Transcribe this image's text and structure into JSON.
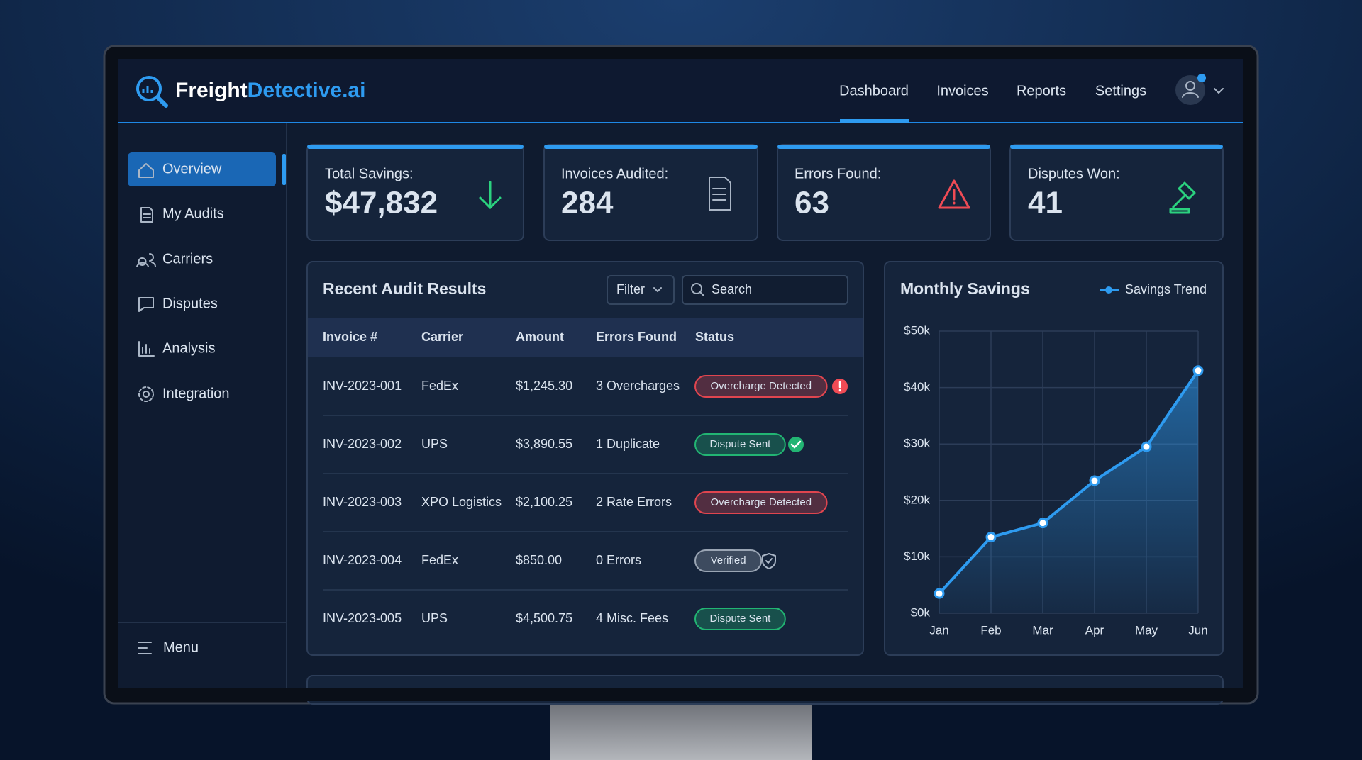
{
  "brand": {
    "name_1": "Freight",
    "name_2": "Detective.ai"
  },
  "nav": [
    "Dashboard",
    "Invoices",
    "Reports",
    "Settings"
  ],
  "sidebar": [
    "Overview",
    "My Audits",
    "Carriers",
    "Disputes",
    "Analysis",
    "Integration"
  ],
  "menu": "Menu",
  "stats": [
    {
      "label": "Total Savings:",
      "value": "$47,832"
    },
    {
      "label": "Invoices Audited:",
      "value": "284"
    },
    {
      "label": "Errors Found:",
      "value": "63"
    },
    {
      "label": "Disputes Won:",
      "value": "41"
    }
  ],
  "table": {
    "title": "Recent Audit Results",
    "filter": "Filter",
    "search": "Search",
    "columns": [
      "Invoice #",
      "Carrier",
      "Amount",
      "Errors Found",
      "Status"
    ],
    "rows": [
      {
        "invoice": "INV-2023-001",
        "carrier": "FedEx",
        "amount": "$1,245.30",
        "errors": "3 Overcharges",
        "status": "Overcharge Detected",
        "status_color": "#e0454f"
      },
      {
        "invoice": "INV-2023-002",
        "carrier": "UPS",
        "amount": "$3,890.55",
        "errors": "1 Duplicate",
        "status": "Dispute Sent",
        "status_color": "#22b573"
      },
      {
        "invoice": "INV-2023-003",
        "carrier": "XPO Logistics",
        "amount": "$2,100.25",
        "errors": "2 Rate Errors",
        "status": "Overcharge Detected",
        "status_color": "#e0454f"
      },
      {
        "invoice": "INV-2023-004",
        "carrier": "FedEx",
        "amount": "$850.00",
        "errors": "0 Errors",
        "status": "Verified",
        "status_color": "#9aa5b4"
      },
      {
        "invoice": "INV-2023-005",
        "carrier": "UPS",
        "amount": "$4,500.75",
        "errors": "4 Misc. Fees",
        "status": "Dispute Sent",
        "status_color": "#22b573"
      }
    ]
  },
  "chart_data": {
    "type": "line",
    "title": "Monthly Savings",
    "categories": [
      "Jan",
      "Feb",
      "Mar",
      "Apr",
      "May",
      "Jun"
    ],
    "series": [
      {
        "name": "Savings Trend",
        "color": "#2e9bf0",
        "values": [
          3500,
          13500,
          16000,
          23500,
          29500,
          43000
        ]
      }
    ],
    "ylim": [
      0,
      50000
    ],
    "yticks": [
      {
        "value": 0,
        "label": "$0k"
      },
      {
        "value": 10000,
        "label": "$10k"
      },
      {
        "value": 20000,
        "label": "$20k"
      },
      {
        "value": 30000,
        "label": "$30k"
      },
      {
        "value": 40000,
        "label": "$40k"
      },
      {
        "value": 50000,
        "label": "$50k"
      }
    ],
    "grid": true,
    "legend": "top-right"
  }
}
